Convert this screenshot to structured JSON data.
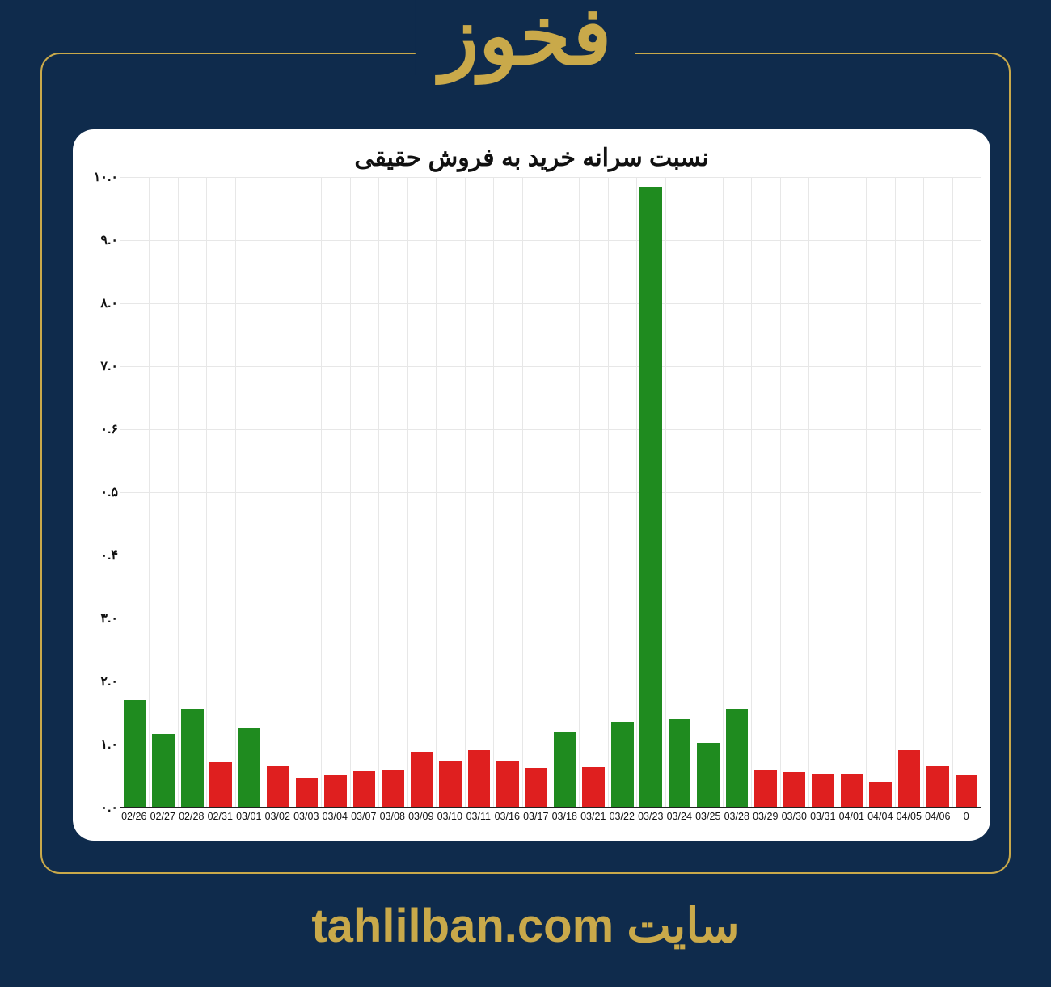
{
  "page": {
    "background_color": "#0f2b4c",
    "accent_color": "#c9a94a",
    "border_radius": 24
  },
  "header": {
    "title": "فخوز",
    "title_fontsize": 100,
    "title_color": "#c9a94a"
  },
  "footer": {
    "site_word": "سایت",
    "domain": "tahlilban.com",
    "fontsize": 58,
    "color": "#c9a94a"
  },
  "chart": {
    "type": "bar",
    "title": "نسبت سرانه خرید به فروش حقیقی",
    "title_fontsize": 30,
    "title_color": "#111111",
    "background_color": "#ffffff",
    "card_radius": 26,
    "grid_color": "#e7e7e7",
    "axis_color": "#222222",
    "ylim": [
      0.0,
      10.0
    ],
    "ytick_step": 1.0,
    "ytick_labels": [
      "٠.٠",
      "١.٠",
      "٢.٠",
      "٣.٠",
      "۴.٠",
      "۵.٠",
      "۶.٠",
      "٧.٠",
      "٨.٠",
      "٩.٠",
      "١٠.٠"
    ],
    "x_label_fontsize": 12.5,
    "y_label_fontsize": 16,
    "bar_width_ratio": 0.78,
    "color_positive": "#1f8b1f",
    "color_negative": "#df1f1f",
    "categories": [
      "02/26",
      "02/27",
      "02/28",
      "02/31",
      "03/01",
      "03/02",
      "03/03",
      "03/04",
      "03/07",
      "03/08",
      "03/09",
      "03/10",
      "03/11",
      "03/16",
      "03/17",
      "03/18",
      "03/21",
      "03/22",
      "03/23",
      "03/24",
      "03/25",
      "03/28",
      "03/29",
      "03/30",
      "03/31",
      "04/01",
      "04/04",
      "04/05",
      "04/06",
      "0"
    ],
    "values": [
      1.7,
      1.15,
      1.55,
      0.7,
      1.25,
      0.65,
      0.45,
      0.5,
      0.57,
      0.58,
      0.87,
      0.72,
      0.9,
      0.72,
      0.62,
      1.2,
      0.63,
      1.35,
      9.85,
      1.4,
      1.02,
      1.55,
      0.58,
      0.55,
      0.52,
      0.52,
      0.4,
      0.9,
      0.65,
      0.5
    ],
    "bar_colors": [
      "#1f8b1f",
      "#1f8b1f",
      "#1f8b1f",
      "#df1f1f",
      "#1f8b1f",
      "#df1f1f",
      "#df1f1f",
      "#df1f1f",
      "#df1f1f",
      "#df1f1f",
      "#df1f1f",
      "#df1f1f",
      "#df1f1f",
      "#df1f1f",
      "#df1f1f",
      "#1f8b1f",
      "#df1f1f",
      "#1f8b1f",
      "#1f8b1f",
      "#1f8b1f",
      "#1f8b1f",
      "#1f8b1f",
      "#df1f1f",
      "#df1f1f",
      "#df1f1f",
      "#df1f1f",
      "#df1f1f",
      "#df1f1f",
      "#df1f1f",
      "#df1f1f"
    ]
  }
}
